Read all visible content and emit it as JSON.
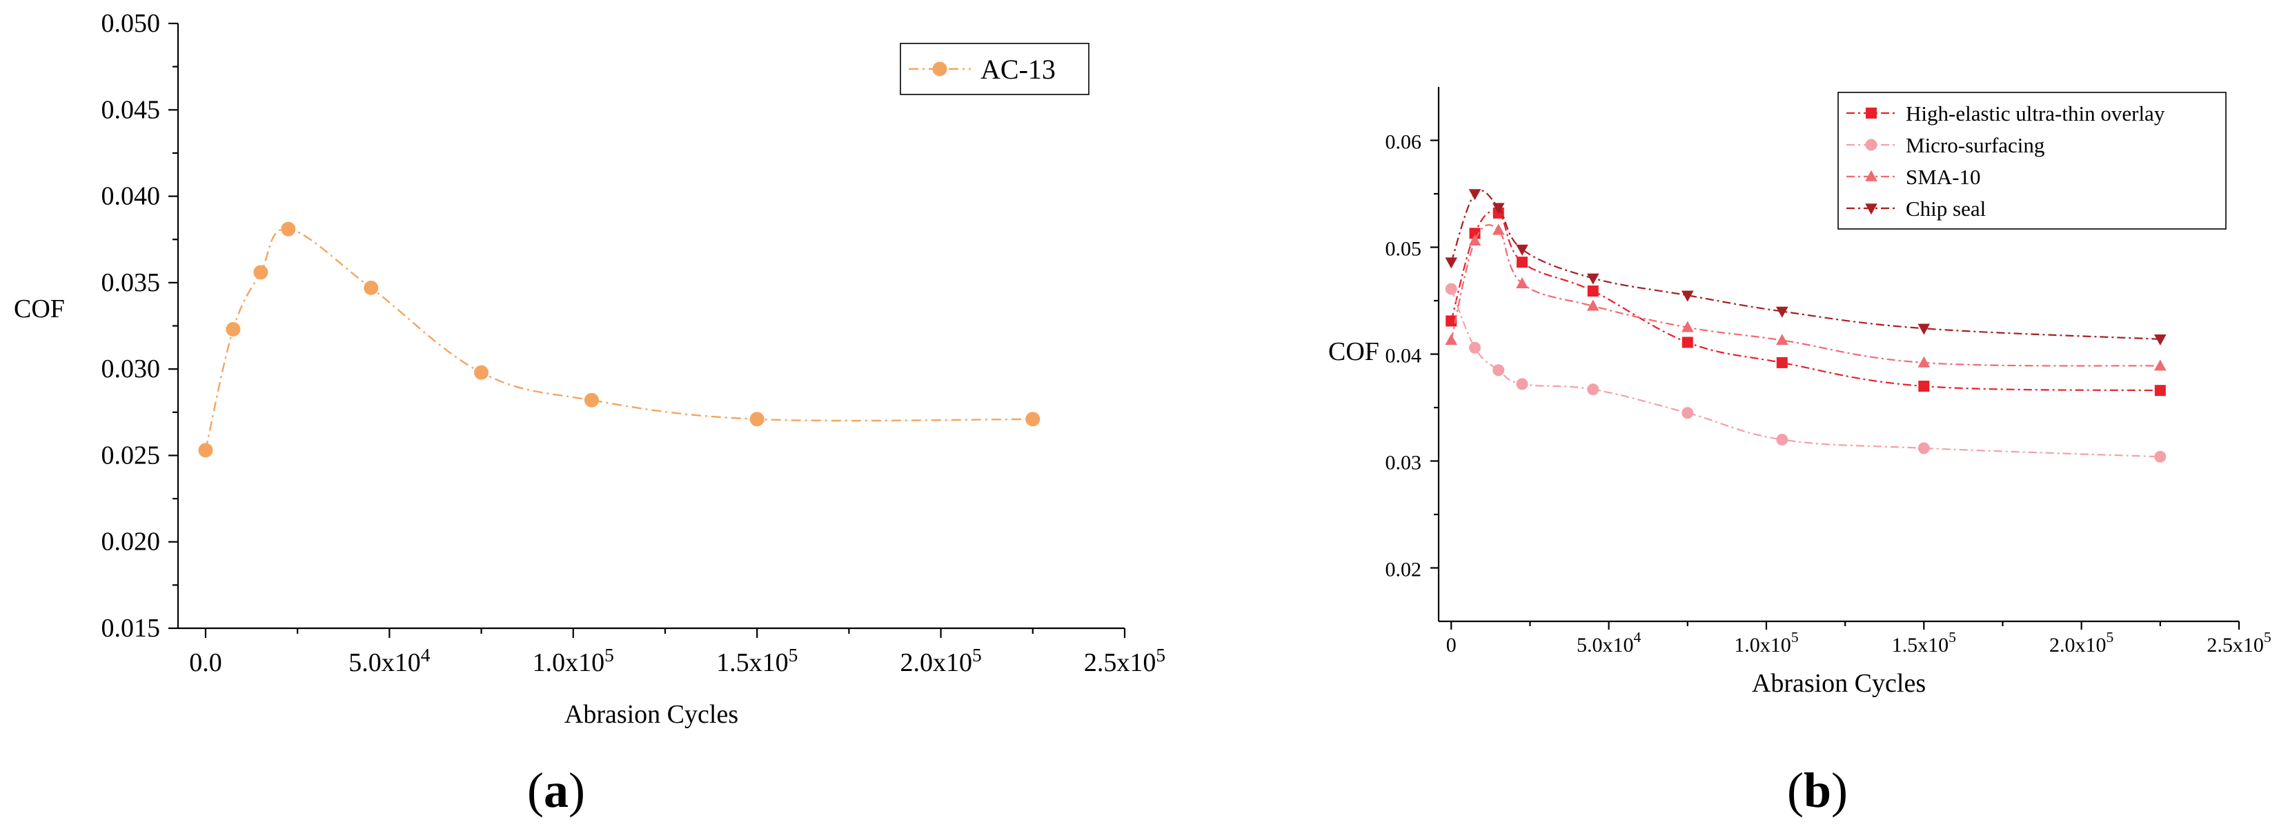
{
  "chart_data": [
    {
      "panel": "(a)",
      "panel_label_open": "(",
      "panel_label_letter": "a",
      "panel_label_close": ")",
      "type": "line",
      "xlabel": "Abrasion Cycles",
      "ylabel": "COF",
      "xlim": [
        -7500,
        250000
      ],
      "ylim": [
        0.015,
        0.05
      ],
      "x_ticks": [
        {
          "value": 0,
          "mant": "0.0",
          "exp": ""
        },
        {
          "value": 50000,
          "mant": "5.0x10",
          "exp": "4"
        },
        {
          "value": 100000,
          "mant": "1.0x10",
          "exp": "5"
        },
        {
          "value": 150000,
          "mant": "1.5x10",
          "exp": "5"
        },
        {
          "value": 200000,
          "mant": "2.0x10",
          "exp": "5"
        },
        {
          "value": 250000,
          "mant": "2.5x10",
          "exp": "5"
        }
      ],
      "y_ticks": [
        "0.015",
        "0.020",
        "0.025",
        "0.030",
        "0.035",
        "0.040",
        "0.045",
        "0.050"
      ],
      "legend_position": "top-right",
      "series": [
        {
          "name": "AC-13",
          "color": "#F5A460",
          "marker": "circle",
          "line": "dash-dot",
          "x": [
            0,
            7500,
            15000,
            22500,
            45000,
            75000,
            105000,
            150000,
            225000
          ],
          "y": [
            0.0253,
            0.0323,
            0.0356,
            0.0381,
            0.0347,
            0.0298,
            0.0282,
            0.0271,
            0.0271
          ]
        }
      ]
    },
    {
      "panel": "(b)",
      "panel_label_open": "(",
      "panel_label_letter": "b",
      "panel_label_close": ")",
      "type": "line",
      "xlabel": "Abrasion Cycles",
      "ylabel": "COF",
      "xlim": [
        -4000,
        250000
      ],
      "ylim": [
        0.015,
        0.065
      ],
      "x_ticks": [
        {
          "value": 0,
          "mant": "0",
          "exp": ""
        },
        {
          "value": 50000,
          "mant": "5.0x10",
          "exp": "4"
        },
        {
          "value": 100000,
          "mant": "1.0x10",
          "exp": "5"
        },
        {
          "value": 150000,
          "mant": "1.5x10",
          "exp": "5"
        },
        {
          "value": 200000,
          "mant": "2.0x10",
          "exp": "5"
        },
        {
          "value": 250000,
          "mant": "2.5x10",
          "exp": "5"
        }
      ],
      "y_ticks": [
        "0.02",
        "0.03",
        "0.04",
        "0.05",
        "0.06"
      ],
      "legend_position": "top-right",
      "series": [
        {
          "name": "High-elastic ultra-thin overlay",
          "color": "#E8202A",
          "marker": "square",
          "line": "dash-dot",
          "x": [
            0,
            7500,
            15000,
            22500,
            45000,
            75000,
            105000,
            150000,
            225000
          ],
          "y": [
            0.0431,
            0.0513,
            0.0532,
            0.0486,
            0.0459,
            0.0411,
            0.0392,
            0.037,
            0.0366
          ]
        },
        {
          "name": "Micro-surfacing",
          "color": "#F4A0A8",
          "marker": "circle",
          "line": "dash-dot",
          "x": [
            0,
            7500,
            15000,
            22500,
            45000,
            75000,
            105000,
            150000,
            225000
          ],
          "y": [
            0.0461,
            0.0406,
            0.0385,
            0.0372,
            0.0367,
            0.0345,
            0.032,
            0.0312,
            0.0304
          ]
        },
        {
          "name": "SMA-10",
          "color": "#F06A72",
          "marker": "triangle-up",
          "line": "dash-dot",
          "x": [
            0,
            7500,
            15000,
            22500,
            45000,
            75000,
            105000,
            150000,
            225000
          ],
          "y": [
            0.0413,
            0.0506,
            0.0516,
            0.0466,
            0.0445,
            0.0425,
            0.0413,
            0.0392,
            0.0389
          ]
        },
        {
          "name": "Chip seal",
          "color": "#A51F24",
          "marker": "triangle-down",
          "line": "dash-dot",
          "x": [
            0,
            7500,
            15000,
            22500,
            45000,
            75000,
            105000,
            150000,
            225000
          ],
          "y": [
            0.0486,
            0.055,
            0.0537,
            0.0498,
            0.0471,
            0.0455,
            0.044,
            0.0424,
            0.0414
          ]
        }
      ]
    }
  ]
}
